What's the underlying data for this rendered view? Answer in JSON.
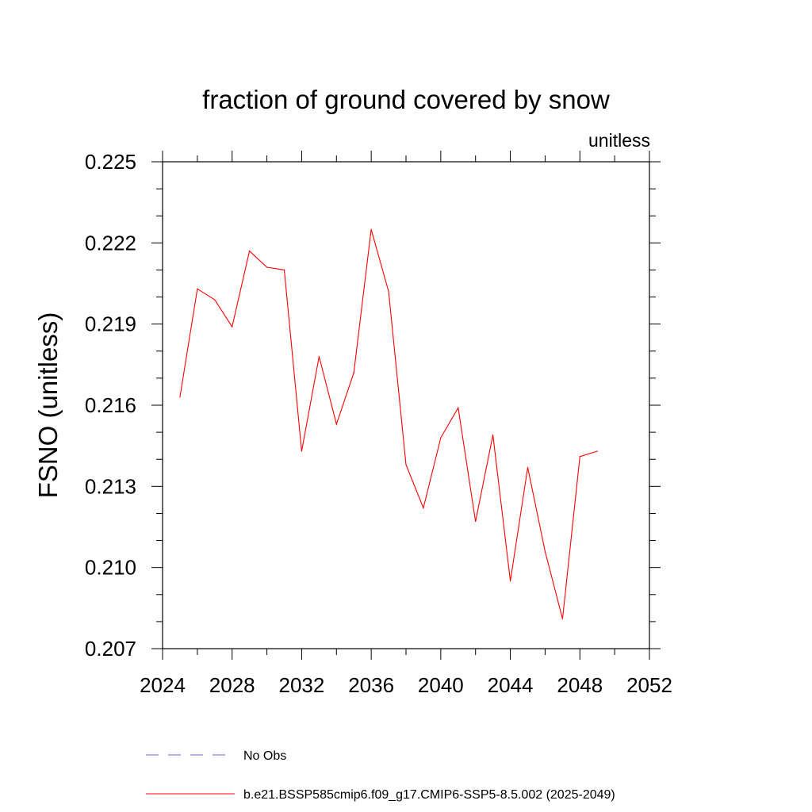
{
  "chart_data": {
    "type": "line",
    "title": "fraction of ground covered by snow",
    "units_label": "unitless",
    "xlabel": "",
    "ylabel": "FSNO  (unitless)",
    "xlim": [
      2024,
      2052
    ],
    "ylim": [
      0.207,
      0.225
    ],
    "x_ticks": [
      2024,
      2028,
      2032,
      2036,
      2040,
      2044,
      2048,
      2052
    ],
    "y_ticks": [
      "0.207",
      "0.210",
      "0.213",
      "0.216",
      "0.219",
      "0.222",
      "0.225"
    ],
    "grid": false,
    "legend_position": "bottom",
    "series": [
      {
        "name": "b.e21.BSSP585cmip6.f09_g17.CMIP6-SSP5-8.5.002 (2025-2049)",
        "color": "#ff0000",
        "style": "solid",
        "x": [
          2025,
          2026,
          2027,
          2028,
          2029,
          2030,
          2031,
          2032,
          2033,
          2034,
          2035,
          2036,
          2037,
          2038,
          2039,
          2040,
          2041,
          2042,
          2043,
          2044,
          2045,
          2046,
          2047,
          2048,
          2049
        ],
        "values": [
          0.2163,
          0.2203,
          0.2199,
          0.2189,
          0.2217,
          0.2211,
          0.221,
          0.2143,
          0.2178,
          0.2153,
          0.2172,
          0.2225,
          0.2202,
          0.2138,
          0.2122,
          0.2148,
          0.2159,
          0.2117,
          0.2149,
          0.2095,
          0.2137,
          0.2106,
          0.2081,
          0.2141,
          0.2143
        ]
      },
      {
        "name": "No Obs",
        "color": "#6a6ac8",
        "style": "dashed",
        "x": [],
        "values": []
      }
    ]
  }
}
